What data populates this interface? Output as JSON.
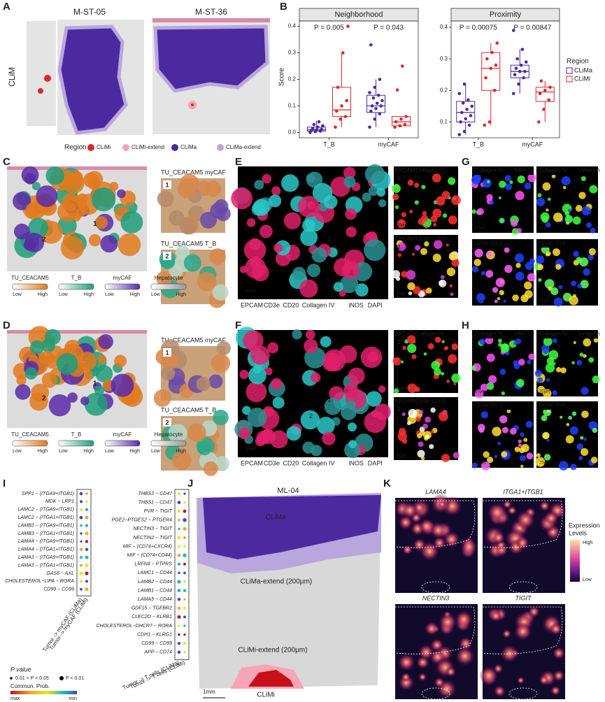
{
  "chart_data": {
    "type": "box",
    "panel_label": "B",
    "y_label": "Score",
    "x_categories": [
      "T_B",
      "myCAF"
    ],
    "legend_title": "Region",
    "series": [
      {
        "name": "CLiMa",
        "color": "#4b2aa0"
      },
      {
        "name": "CLiMi",
        "color": "#e0262a"
      }
    ],
    "facets": [
      {
        "title": "Neighborhood",
        "ylim": [
          -0.02,
          0.42
        ],
        "yticks": [
          {
            "value": 0,
            "label": "0.0"
          },
          0.1,
          0.2,
          0.3,
          0.4
        ],
        "p_values": [
          "P = 0.005",
          "P = 0.043"
        ],
        "groups": [
          [
            {
              "whisker_low": 0,
              "q1": 0.005,
              "median": 0.01,
              "q3": 0.02,
              "whisker_high": 0.045,
              "points": [
                0,
                0.003,
                0.005,
                0.008,
                0.01,
                0.012,
                0.015,
                0.02,
                0.025,
                0.03,
                0.04
              ]
            },
            {
              "whisker_low": 0.02,
              "q1": 0.06,
              "median": 0.085,
              "q3": 0.17,
              "whisker_high": 0.3,
              "points": [
                0.02,
                0.05,
                0.06,
                0.08,
                0.1,
                0.12,
                0.17,
                0.3,
                0.4
              ]
            }
          ],
          [
            {
              "whisker_low": 0.02,
              "q1": 0.075,
              "median": 0.1,
              "q3": 0.14,
              "whisker_high": 0.2,
              "points": [
                0.02,
                0.05,
                0.07,
                0.08,
                0.09,
                0.1,
                0.1,
                0.11,
                0.12,
                0.13,
                0.14,
                0.15,
                0.17,
                0.2,
                0.33
              ]
            },
            {
              "whisker_low": 0.02,
              "q1": 0.025,
              "median": 0.04,
              "q3": 0.06,
              "whisker_high": 0.06,
              "points": [
                0.02,
                0.025,
                0.03,
                0.04,
                0.05,
                0.06,
                0.16,
                0.25
              ]
            }
          ]
        ]
      },
      {
        "title": "Proximity",
        "ylim": [
          0.05,
          0.42
        ],
        "yticks": [
          0.1,
          0.2,
          0.3,
          0.4
        ],
        "p_values": [
          "P = 0.00075",
          "P = 0.00847"
        ],
        "groups": [
          [
            {
              "whisker_low": 0.06,
              "q1": 0.1,
              "median": 0.13,
              "q3": 0.165,
              "whisker_high": 0.22,
              "points": [
                0.06,
                0.07,
                0.09,
                0.1,
                0.11,
                0.12,
                0.13,
                0.14,
                0.15,
                0.16,
                0.17,
                0.19,
                0.22
              ]
            },
            {
              "whisker_low": 0.09,
              "q1": 0.2,
              "median": 0.27,
              "q3": 0.32,
              "whisker_high": 0.35,
              "points": [
                0.09,
                0.1,
                0.2,
                0.24,
                0.27,
                0.28,
                0.3,
                0.32,
                0.35
              ]
            }
          ],
          [
            {
              "whisker_low": 0.19,
              "q1": 0.24,
              "median": 0.26,
              "q3": 0.28,
              "whisker_high": 0.33,
              "points": [
                0.19,
                0.22,
                0.24,
                0.25,
                0.26,
                0.26,
                0.27,
                0.28,
                0.29,
                0.3,
                0.33,
                0.39
              ]
            },
            {
              "whisker_low": 0.1,
              "q1": 0.165,
              "median": 0.195,
              "q3": 0.21,
              "whisker_high": 0.23,
              "points": [
                0.1,
                0.14,
                0.17,
                0.19,
                0.2,
                0.21,
                0.23
              ]
            }
          ]
        ]
      }
    ]
  },
  "panels": {
    "A": {
      "label": "A",
      "row_label": "CLiM",
      "samples": [
        "M-ST-05",
        "M-ST-36"
      ],
      "legend_title": "Region",
      "legend": [
        "CLiMi",
        "CLiMi-extend",
        "CLiMa",
        "CLiMa-extend"
      ]
    },
    "C": {
      "label": "C",
      "insets": [
        "TU_CEACAM5 myCAF",
        "TU_CEACAM5 T_B"
      ],
      "markers": [
        "1",
        "2"
      ],
      "scales": [
        "TU_CEACAM5",
        "T_B",
        "myCAF",
        "Hepatocyte"
      ],
      "low": "Low",
      "high": "High"
    },
    "D": {
      "label": "D",
      "insets": [
        "TU_CEACAM5 myCAF",
        "TU_CEACAM5 T_B"
      ],
      "markers": [
        "1",
        "2"
      ],
      "scales": [
        "TU_CEACAM5",
        "T_B",
        "myCAF",
        "Hepatocyte"
      ],
      "low": "Low",
      "high": "High"
    },
    "E": {
      "label": "E",
      "stains": [
        "EPCAM",
        "CD3e",
        "CD20",
        "Collagen IV",
        "iNOS",
        "DAPI"
      ],
      "scale": "1mm",
      "markers": [
        "1",
        "2"
      ],
      "inset_stains": [
        [
          "EPCAM",
          "Collagen IV"
        ],
        [
          "EPCAM",
          "CD3e",
          "CD20"
        ]
      ],
      "inset_scale": "50μm"
    },
    "F": {
      "label": "F",
      "stains": [
        "EPCAM",
        "CD3e",
        "CD20",
        "Collagen IV",
        "iNOS",
        "DAPI"
      ],
      "scale": "1mm",
      "markers": [
        "1",
        "2"
      ],
      "inset_stains": [
        [
          "EPCAM",
          "Collagen IV"
        ],
        [
          "EPCAM",
          "CD3e",
          "CD20"
        ]
      ],
      "inset_scale": "50μm"
    },
    "G": {
      "label": "G",
      "tiles": [
        [
          "Collagen IV",
          "SMA"
        ],
        [
          "Collagen IV",
          "Vimentin"
        ],
        [
          "CD3e",
          "PD-1"
        ],
        [
          "CD3e",
          "TOX"
        ]
      ],
      "scale": "20μm"
    },
    "H": {
      "label": "H",
      "tiles": [
        [
          "Collagen IV",
          "SMA"
        ],
        [
          "Collagen IV",
          "Vimentin"
        ],
        [
          "CD3e",
          "PD-1"
        ],
        [
          "CD3e",
          "TOX"
        ]
      ],
      "scale": "20μm"
    },
    "I": {
      "label": "I",
      "left_pairs": [
        "SPP1 − (ITGA9+ITGB1)",
        "MDK − LRP1",
        "LAMC2 − (ITGA9+ITGB1)",
        "LAMC2 − (ITGA1+ITGB1)",
        "LAMB3 − (ITGA9+ITGB1)",
        "LAMB3 − (ITGA1+ITGB1)",
        "LAMA4 − (ITGA9+ITGB1)",
        "LAMA4 − (ITGA1+ITGB1)",
        "LAMA3 − (ITGA9+ITGB1)",
        "LAMA3 − (ITGA1+ITGB1)",
        "GAS6 − AXL",
        "CHOLESTEROL−LIPA − RORA",
        "CD99 − CD99"
      ],
      "left_groups": [
        "Tumor -> myCAF (CLiMa)",
        "Tumor -> myCAF (CLiMi)"
      ],
      "right_pairs": [
        "THBS3 − CD47",
        "THBS1 − CD47",
        "PVR − TIGIT",
        "PGE2−PTGES2 − PTGER4",
        "NECTIN3 − TIGIT",
        "NECTIN2 − TIGIT",
        "MIF − (CD74+CXCR4)",
        "MIF − (CD74+CD44)",
        "LRFN4 − PTPRS",
        "LAMC1 − CD44",
        "LAMB2 − CD44",
        "LAMB1 − CD44",
        "LAMA5 − CD44",
        "GDF15 − TGFBR2",
        "CLEC2D − KLRB1",
        "CHOLESTEROL−DHCR7 − RORA",
        "CDH1 − KLRG1",
        "CD99 − CD99",
        "APP − CD74"
      ],
      "right_groups": [
        "Tumor -> T cells (CLiMa)",
        "Tumor -> T cells (CLiMi)"
      ],
      "pvalue_title": "P value",
      "pvalue_levels": [
        "0.01 < P < 0.05",
        "P < 0.01"
      ],
      "prob_title": "Commun. Prob.",
      "prob_max": "max",
      "prob_min": "min"
    },
    "J": {
      "label": "J",
      "sample": "ML-04",
      "regions": [
        "CLiMa",
        "CLiMa-extend (200μm)",
        "CLiMi-extend (200μm)",
        "CLiMi"
      ],
      "scale": "1mm"
    },
    "K": {
      "label": "K",
      "genes": [
        "LAMA4",
        "ITGA1+ITGB1",
        "NECTIN3",
        "TIGIT"
      ],
      "legend_title": [
        "Expression",
        "Levels"
      ],
      "high": "High",
      "low": "Low"
    }
  }
}
